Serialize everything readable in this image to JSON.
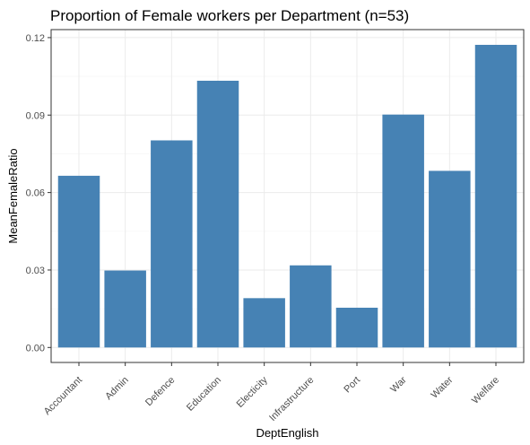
{
  "chart_data": {
    "type": "bar",
    "title": "Proportion of Female workers per Department (n=53)",
    "xlabel": "DeptEnglish",
    "ylabel": "MeanFemaleRatio",
    "categories": [
      "Accountant",
      "Admin",
      "Defence",
      "Education",
      "Electicity",
      "Infrastructure",
      "Port",
      "War",
      "Water",
      "Welfare"
    ],
    "values": [
      0.0665,
      0.0298,
      0.0802,
      0.1033,
      0.0191,
      0.0318,
      0.0154,
      0.0902,
      0.0684,
      0.1172
    ],
    "ylim": [
      -0.0058,
      0.1231
    ],
    "yticks": [
      0,
      0.03,
      0.06,
      0.09,
      0.12
    ],
    "ytick_labels": [
      "0.00",
      "0.03",
      "0.06",
      "0.09",
      "0.12"
    ],
    "bar_color": "#4682b4",
    "grid": true,
    "legend": "none"
  }
}
